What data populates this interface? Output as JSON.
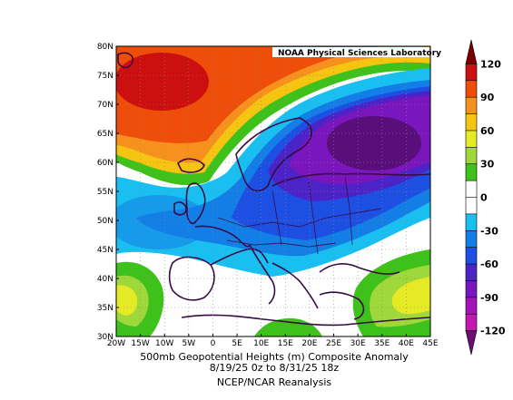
{
  "map": {
    "credit": "NOAA Physical Sciences Laboratory",
    "lat_labels": [
      "80N",
      "75N",
      "70N",
      "65N",
      "60N",
      "55N",
      "50N",
      "45N",
      "40N",
      "35N",
      "30N"
    ],
    "lon_labels": [
      "20W",
      "15W",
      "10W",
      "5W",
      "0",
      "5E",
      "10E",
      "15E",
      "20E",
      "25E",
      "30E",
      "35E",
      "40E",
      "45E"
    ],
    "lat_range": [
      30,
      80
    ],
    "lon_range": [
      -20,
      45
    ]
  },
  "caption": {
    "line1": "500mb Geopotential Heights (m)   Composite Anomaly",
    "line2": "8/19/25 0z  to 8/31/25 18z",
    "line3": "NCEP/NCAR Reanalysis"
  },
  "colorbar": {
    "labels": [
      "120",
      "90",
      "60",
      "30",
      "0",
      "-30",
      "-60",
      "-90",
      "-120"
    ],
    "colors": [
      "#7a0000",
      "#cc1010",
      "#ee4e0a",
      "#f7911d",
      "#f6c512",
      "#e6ea24",
      "#9ed83b",
      "#3fc11b",
      "#ffffff",
      "#ffffff",
      "#19bff0",
      "#137ee6",
      "#1e4fe3",
      "#4b23c7",
      "#7a16bd",
      "#a414b8",
      "#c418b0",
      "#6b0f74"
    ]
  },
  "anomaly_colors": {
    "strong_positive": "#e02a12",
    "positive": "#f7911d",
    "weak_positive": "#f6c512",
    "slight_positive": "#9ed83b",
    "neutral": "#ffffff",
    "slight_negative": "#19bff0",
    "negative": "#137ee6",
    "moderate_negative": "#1e4fe3",
    "strong_negative": "#7a16bd",
    "extreme_negative": "#5a0e79"
  }
}
